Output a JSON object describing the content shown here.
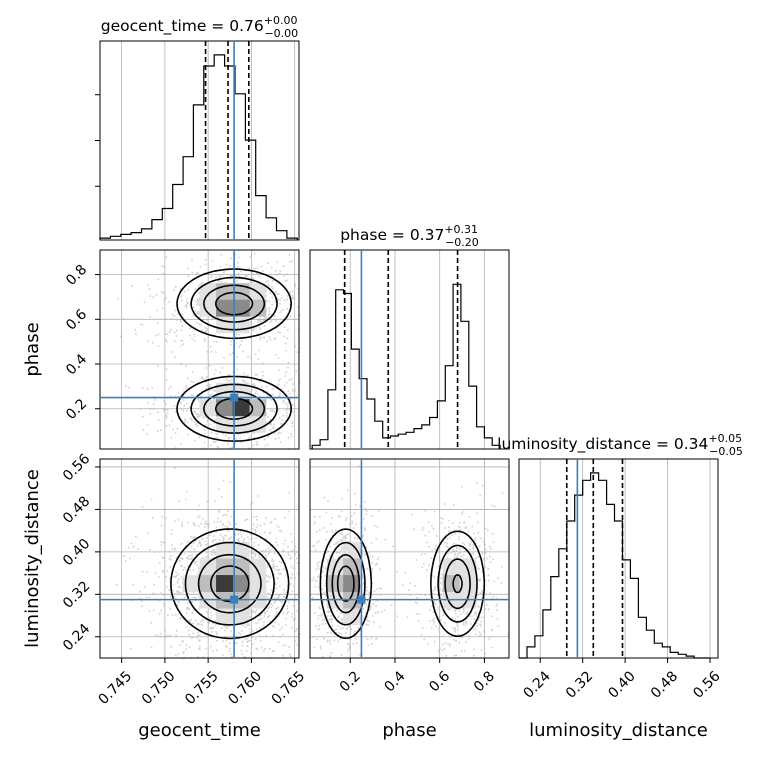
{
  "chart_data": {
    "type": "corner",
    "parameters": [
      "geocent_time",
      "phase",
      "luminosity_distance"
    ],
    "truths": {
      "geocent_time": 0.758,
      "phase": 0.25,
      "luminosity_distance": 0.31
    },
    "colors": {
      "truth": "#3b7fba",
      "hist": "#000000",
      "grid": "#b0b0b0",
      "samples": "#9a9a9a"
    },
    "grid": true,
    "titles": {
      "geocent_time": {
        "label": "geocent_time = 0.76",
        "plus": "+0.00",
        "minus": "−0.00"
      },
      "phase": {
        "label": "phase = 0.37",
        "plus": "+0.31",
        "minus": "−0.20"
      },
      "luminosity_distance": {
        "label": "luminosity_distance = 0.34",
        "plus": "+0.05",
        "minus": "−0.05"
      }
    },
    "axis_labels": {
      "x": [
        "geocent_time",
        "phase",
        "luminosity_distance"
      ],
      "y": [
        "phase",
        "luminosity_distance"
      ]
    },
    "ranges": {
      "geocent_time": [
        0.7425,
        0.7655
      ],
      "phase": [
        0.02,
        0.91
      ],
      "luminosity_distance": [
        0.2,
        0.575
      ]
    },
    "ticks": {
      "geocent_time": [
        "0.745",
        "0.750",
        "0.755",
        "0.760",
        "0.765"
      ],
      "phase": [
        "0.2",
        "0.4",
        "0.6",
        "0.8"
      ],
      "luminosity_distance": [
        "0.24",
        "0.32",
        "0.40",
        "0.48",
        "0.56"
      ]
    },
    "quantiles": {
      "geocent_time": [
        0.7547,
        0.7573,
        0.7597
      ],
      "phase": [
        0.175,
        0.37,
        0.68
      ],
      "luminosity_distance": [
        0.29,
        0.34,
        0.395
      ]
    },
    "hist_1d": {
      "geocent_time": {
        "edges": [
          0.7425,
          0.7437,
          0.7449,
          0.7461,
          0.7473,
          0.7485,
          0.7497,
          0.7509,
          0.7521,
          0.7533,
          0.7545,
          0.7557,
          0.7569,
          0.7581,
          0.7593,
          0.7605,
          0.7617,
          0.7629,
          0.7641,
          0.7653
        ],
        "counts": [
          0.01,
          0.02,
          0.03,
          0.04,
          0.06,
          0.11,
          0.17,
          0.3,
          0.45,
          0.73,
          0.94,
          1.0,
          0.94,
          0.79,
          0.54,
          0.24,
          0.12,
          0.05,
          0.01
        ]
      },
      "phase": {
        "edges": [
          0.03,
          0.065,
          0.1,
          0.135,
          0.17,
          0.205,
          0.24,
          0.275,
          0.31,
          0.345,
          0.38,
          0.415,
          0.45,
          0.485,
          0.52,
          0.555,
          0.59,
          0.625,
          0.66,
          0.695,
          0.73,
          0.765,
          0.8,
          0.835,
          0.87
        ],
        "counts": [
          0.02,
          0.05,
          0.32,
          0.86,
          0.84,
          0.54,
          0.38,
          0.27,
          0.15,
          0.06,
          0.07,
          0.08,
          0.09,
          0.11,
          0.13,
          0.17,
          0.26,
          0.45,
          0.89,
          0.69,
          0.34,
          0.12,
          0.06,
          0.02
        ]
      },
      "luminosity_distance": {
        "edges": [
          0.2,
          0.215,
          0.23,
          0.245,
          0.26,
          0.275,
          0.29,
          0.305,
          0.32,
          0.335,
          0.35,
          0.365,
          0.38,
          0.395,
          0.41,
          0.425,
          0.44,
          0.455,
          0.47,
          0.485,
          0.5,
          0.515,
          0.53,
          0.545,
          0.56
        ],
        "counts": [
          0.0,
          0.06,
          0.12,
          0.26,
          0.44,
          0.59,
          0.74,
          0.88,
          0.96,
          1.0,
          0.96,
          0.83,
          0.74,
          0.53,
          0.43,
          0.22,
          0.15,
          0.08,
          0.06,
          0.03,
          0.02,
          0.01,
          0.0,
          0.0
        ]
      }
    },
    "density_2d": {
      "phase_vs_geocent_time": {
        "modes": [
          {
            "center": [
              0.758,
              0.67
            ],
            "sigma": [
              0.0032,
              0.075
            ],
            "weight": 1.0
          },
          {
            "center": [
              0.758,
              0.2
            ],
            "sigma": [
              0.0032,
              0.07
            ],
            "weight": 1.0
          }
        ]
      },
      "luminosity_distance_vs_geocent_time": {
        "modes": [
          {
            "center": [
              0.7575,
              0.34
            ],
            "sigma": [
              0.0033,
              0.05
            ],
            "weight": 1.0
          }
        ]
      },
      "luminosity_distance_vs_phase": {
        "modes": [
          {
            "center": [
              0.18,
              0.34
            ],
            "sigma": [
              0.055,
              0.05
            ],
            "weight": 1.0
          },
          {
            "center": [
              0.68,
              0.34
            ],
            "sigma": [
              0.06,
              0.05
            ],
            "weight": 0.85
          }
        ]
      }
    }
  }
}
